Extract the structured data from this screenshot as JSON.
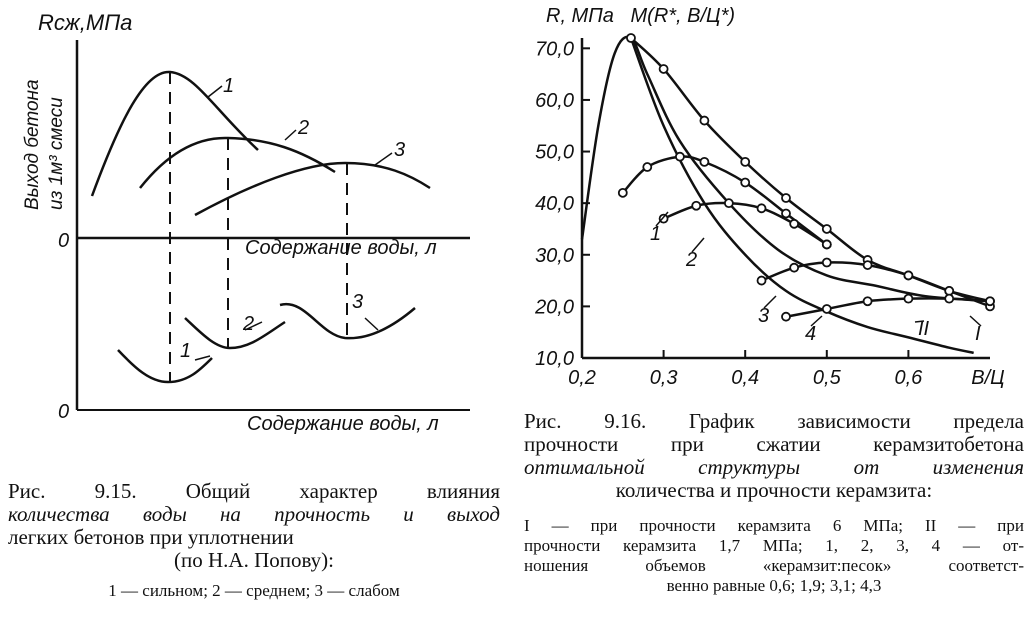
{
  "fig_left": {
    "y_label": "Rсж,МПа",
    "y_label_rot_1": "Выход бетона",
    "y_label_rot_2": "из 1м³ смеси",
    "zero_upper": "0",
    "zero_lower": "0",
    "x_label_upper": "Содержание воды, л",
    "x_label_lower": "Содержание воды, л",
    "curve_labels_upper": [
      "1",
      "2",
      "3"
    ],
    "curve_labels_lower": [
      "1",
      "2",
      "3"
    ],
    "caption": {
      "line1": "Рис. 9.15. Общий характер влияния",
      "line2": "количества воды на прочность и выход",
      "line3": "легких бетонов при уплотнении",
      "line4": "(по Н.А. Попову):",
      "legend": "1 — сильном; 2 — среднем; 3 — слабом"
    }
  },
  "chart_data": {
    "type": "line",
    "title": "R, МПа   M(R*, В/Ц*)",
    "xlabel": "В/Ц",
    "ylabel": "R, МПа",
    "xlim": [
      0.2,
      0.7
    ],
    "ylim": [
      10,
      72
    ],
    "x_ticks": [
      "0,2",
      "0,3",
      "0,4",
      "0,5",
      "0,6"
    ],
    "y_ticks": [
      "10,0",
      "20,0",
      "30,0",
      "40,0",
      "50,0",
      "60,0",
      "70,0"
    ],
    "series": [
      {
        "name": "I",
        "x": [
          0.26,
          0.3,
          0.35,
          0.4,
          0.45,
          0.5,
          0.55,
          0.6,
          0.65,
          0.7
        ],
        "y": [
          72,
          66,
          56,
          48,
          41,
          35,
          29,
          26,
          23,
          21
        ],
        "points": true
      },
      {
        "name": "II",
        "x": [
          0.26,
          0.3,
          0.35,
          0.4,
          0.45,
          0.5,
          0.55,
          0.6,
          0.65,
          0.68
        ],
        "y": [
          72,
          55,
          40,
          30,
          23,
          19,
          16,
          14,
          12,
          11
        ],
        "points": false
      },
      {
        "name": "1",
        "x": [
          0.25,
          0.28,
          0.32,
          0.35,
          0.4,
          0.45,
          0.5
        ],
        "y": [
          42,
          47,
          49,
          48,
          44,
          38,
          32
        ],
        "points": true
      },
      {
        "name": "2",
        "x": [
          0.3,
          0.34,
          0.38,
          0.42,
          0.46,
          0.5
        ],
        "y": [
          37,
          39.5,
          40,
          39,
          36,
          32
        ],
        "points": true
      },
      {
        "name": "3",
        "x": [
          0.42,
          0.46,
          0.5,
          0.55,
          0.6,
          0.65,
          0.7
        ],
        "y": [
          25,
          27.5,
          28.5,
          28,
          26,
          23,
          20
        ],
        "points": true
      },
      {
        "name": "4",
        "x": [
          0.45,
          0.5,
          0.55,
          0.6,
          0.65,
          0.7
        ],
        "y": [
          18,
          19.5,
          21,
          21.5,
          21.5,
          21
        ],
        "points": true
      },
      {
        "name": "",
        "x": [
          0.2,
          0.22,
          0.24,
          0.26,
          0.28,
          0.32,
          0.38,
          0.44,
          0.5,
          0.56,
          0.62,
          0.7
        ],
        "y": [
          33,
          55,
          69,
          72,
          65,
          52,
          40,
          31,
          26,
          24,
          22,
          21
        ],
        "points": false
      }
    ],
    "caption": {
      "line1": "Рис. 9.16. График зависимости предела",
      "line2": "прочности при сжатии керамзитобетона",
      "line3": "оптимальной структуры от изменения",
      "line4": "количества и прочности керамзита:",
      "legend1": "I — при прочности керамзита 6 МПа; II — при",
      "legend2": "прочности керамзита 1,7 МПа; 1, 2, 3, 4 — от-",
      "legend3": "ношения объемов «керамзит:песок» соответст-",
      "legend4": "венно равные 0,6; 1,9; 3,1; 4,3"
    }
  }
}
